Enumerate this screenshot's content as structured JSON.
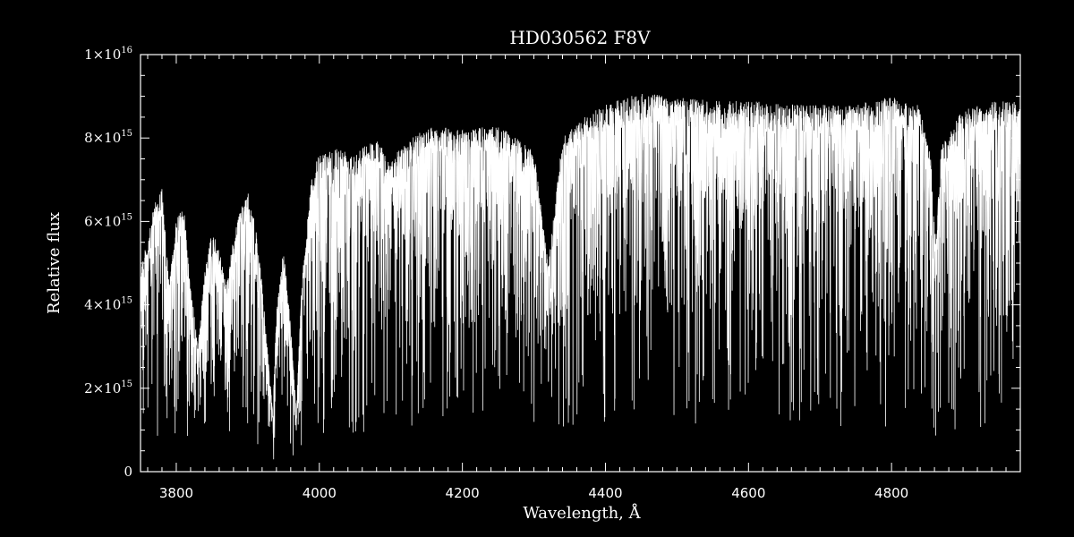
{
  "chart_data": {
    "type": "line",
    "title": "HD030562  F8V",
    "xlabel": "Wavelength, Å",
    "ylabel": "Relative flux",
    "xlim": [
      3750,
      4980
    ],
    "ylim": [
      0,
      1e+16
    ],
    "grid": false,
    "x_ticks": [
      3800,
      4000,
      4200,
      4400,
      4600,
      4800
    ],
    "x_tick_labels": [
      "3800",
      "4000",
      "4200",
      "4400",
      "4600",
      "4800"
    ],
    "y_ticks": [
      0,
      2000000000000000.0,
      4000000000000000.0,
      6000000000000000.0,
      8000000000000000.0,
      1e+16
    ],
    "y_tick_labels": [
      {
        "mantissa": "0",
        "exp": ""
      },
      {
        "mantissa": "2×10",
        "exp": "15"
      },
      {
        "mantissa": "4×10",
        "exp": "15"
      },
      {
        "mantissa": "6×10",
        "exp": "15"
      },
      {
        "mantissa": "8×10",
        "exp": "15"
      },
      {
        "mantissa": "1×10",
        "exp": "16"
      }
    ],
    "series": [
      {
        "x": [
          3750,
          3760,
          3770,
          3780,
          3790,
          3800,
          3810,
          3820,
          3830,
          3840,
          3850,
          3860,
          3870,
          3880,
          3890,
          3900,
          3910,
          3920,
          3930,
          3935,
          3940,
          3950,
          3960,
          3968,
          3975,
          3990,
          4000,
          4020,
          4050,
          4080,
          4100,
          4110,
          4150,
          4200,
          4250,
          4300,
          4320,
          4340,
          4370,
          4400,
          4450,
          4500,
          4550,
          4600,
          4650,
          4700,
          4750,
          4800,
          4840,
          4855,
          4861,
          4870,
          4900,
          4950,
          4980
        ],
        "continuum": [
          5000000000000000.0,
          5500000000000000.0,
          6500000000000000.0,
          6800000000000000.0,
          4500000000000000.0,
          6000000000000000.0,
          6500000000000000.0,
          4500000000000000.0,
          3000000000000000.0,
          4800000000000000.0,
          5800000000000000.0,
          5300000000000000.0,
          4500000000000000.0,
          5600000000000000.0,
          6300000000000000.0,
          6700000000000000.0,
          6000000000000000.0,
          4500000000000000.0,
          2400000000000000.0,
          1400000000000000.0,
          3800000000000000.0,
          5400000000000000.0,
          3500000000000000.0,
          1400000000000000.0,
          4500000000000000.0,
          7200000000000000.0,
          7600000000000000.0,
          7800000000000000.0,
          7700000000000000.0,
          8000000000000000.0,
          7400000000000000.0,
          7700000000000000.0,
          8300000000000000.0,
          8200000000000000.0,
          8300000000000000.0,
          7700000000000000.0,
          5000000000000000.0,
          8000000000000000.0,
          8500000000000000.0,
          8800000000000000.0,
          9100000000000000.0,
          9000000000000000.0,
          8900000000000000.0,
          8900000000000000.0,
          8800000000000000.0,
          8800000000000000.0,
          8800000000000000.0,
          9000000000000000.0,
          8800000000000000.0,
          7500000000000000.0,
          5500000000000000.0,
          7800000000000000.0,
          8700000000000000.0,
          8900000000000000.0,
          8900000000000000.0
        ]
      }
    ]
  }
}
